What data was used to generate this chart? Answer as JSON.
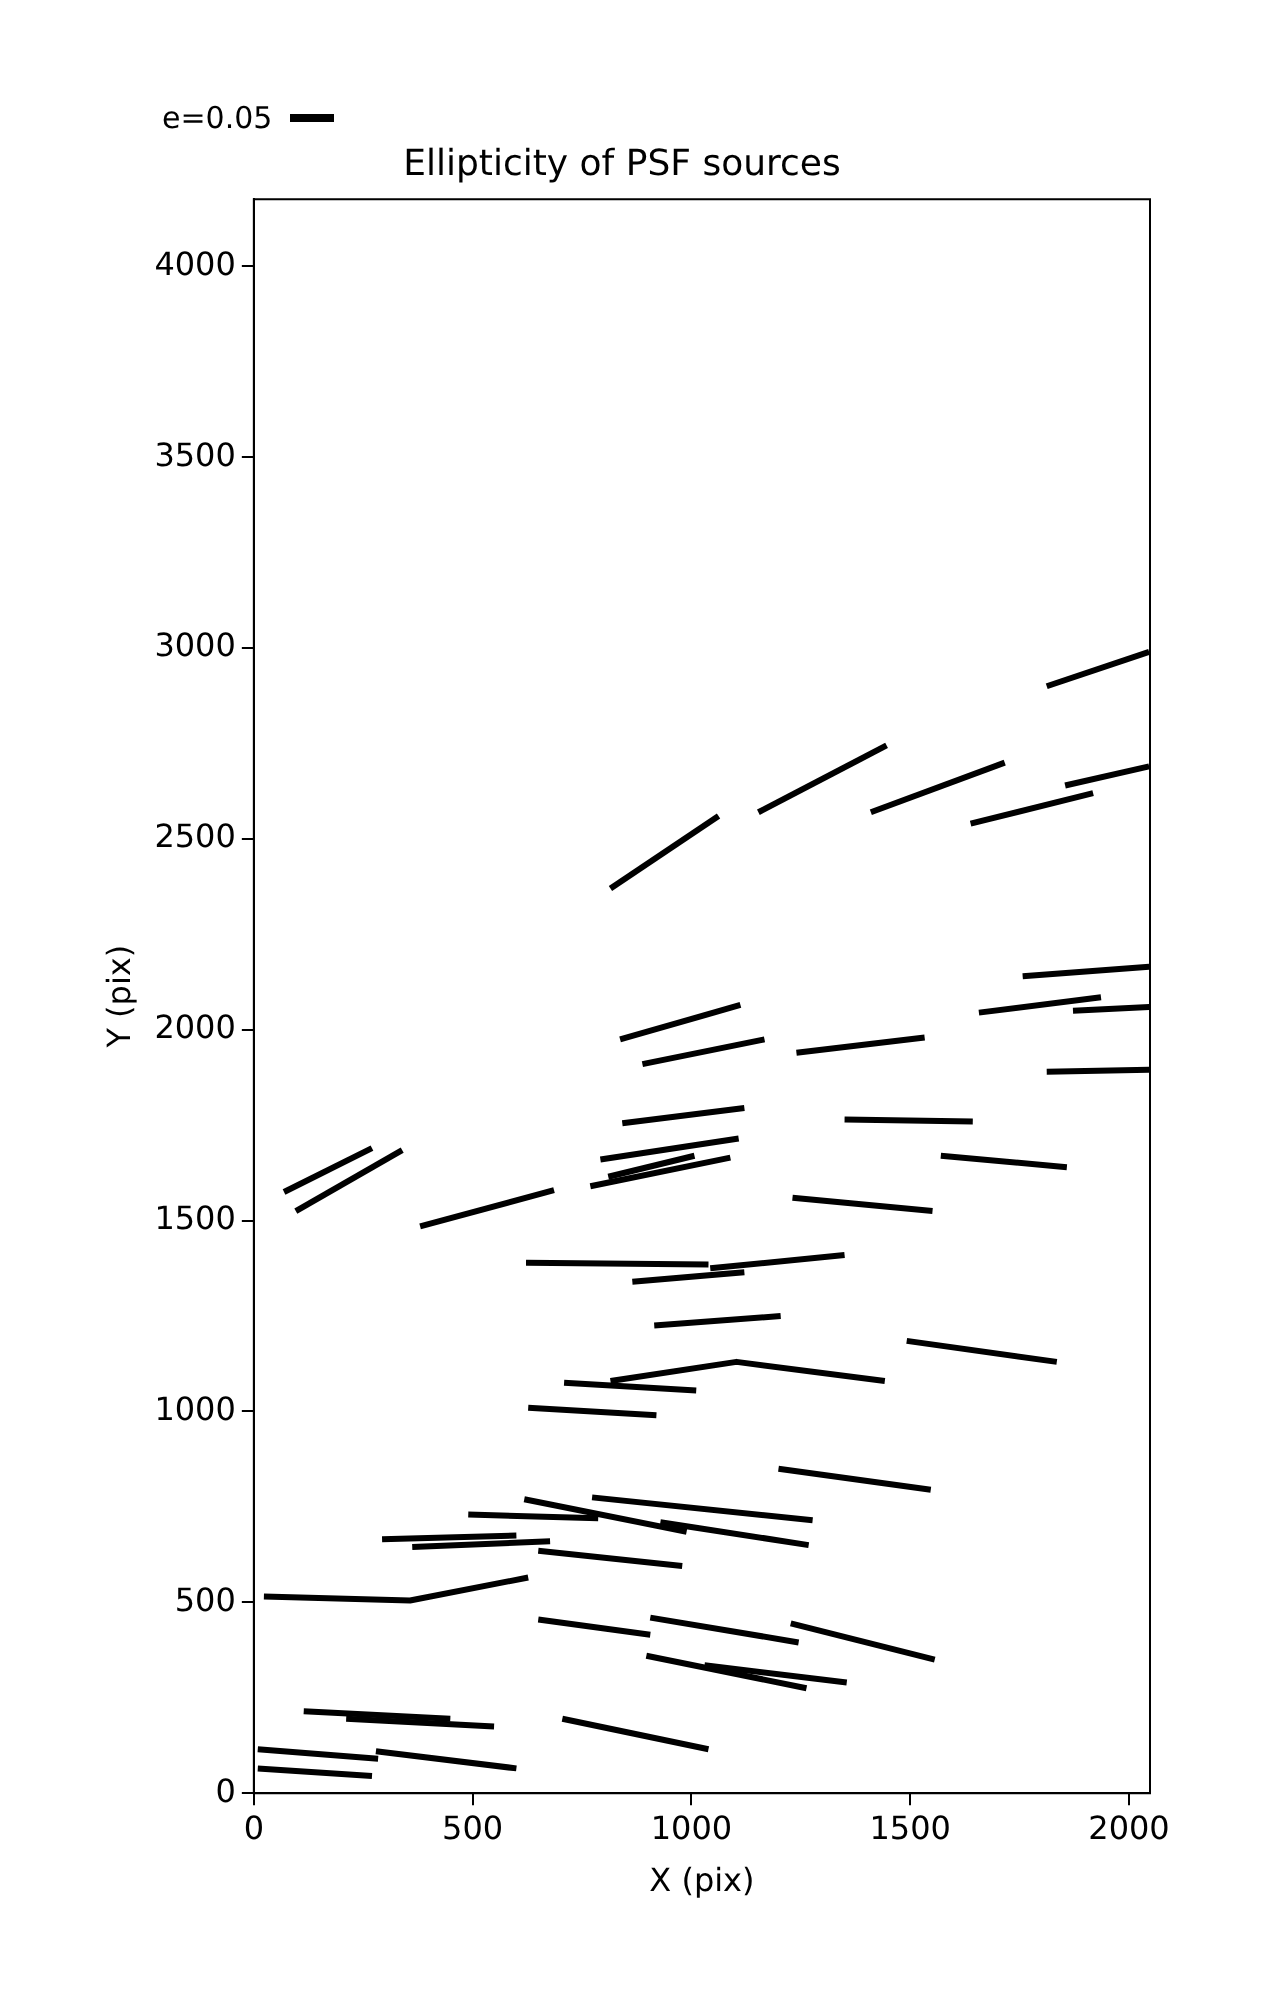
{
  "chart_data": {
    "type": "line",
    "title": "Ellipticity of PSF sources",
    "xlabel": "X (pix)",
    "ylabel": "Y (pix)",
    "xlim": [
      0,
      2048
    ],
    "ylim": [
      0,
      4176
    ],
    "xticks": [
      0,
      500,
      1000,
      1500,
      2000
    ],
    "yticks": [
      0,
      500,
      1000,
      1500,
      2000,
      2500,
      3000,
      3500,
      4000
    ],
    "grid": false,
    "marker": "none",
    "line_style": "solid",
    "annotations": [
      "e=0.05"
    ],
    "series": [
      {
        "color": "#000000",
        "x": [
          1812,
          2046
        ],
        "values": [
          2900,
          2990
        ]
      },
      {
        "color": "#000000",
        "x": [
          815,
          1062
        ],
        "values": [
          2370,
          2560
        ]
      },
      {
        "color": "#000000",
        "x": [
          1153,
          1446
        ],
        "values": [
          2570,
          2745
        ]
      },
      {
        "color": "#000000",
        "x": [
          1410,
          1716
        ],
        "values": [
          2570,
          2700
        ]
      },
      {
        "color": "#000000",
        "x": [
          1638,
          1918
        ],
        "values": [
          2540,
          2620
        ]
      },
      {
        "color": "#000000",
        "x": [
          1854,
          2046
        ],
        "values": [
          2640,
          2690
        ]
      },
      {
        "color": "#000000",
        "x": [
          1757,
          2046
        ],
        "values": [
          2140,
          2165
        ]
      },
      {
        "color": "#000000",
        "x": [
          1657,
          1936
        ],
        "values": [
          2045,
          2085
        ]
      },
      {
        "color": "#000000",
        "x": [
          1872,
          2046
        ],
        "values": [
          2050,
          2060
        ]
      },
      {
        "color": "#000000",
        "x": [
          837,
          1112
        ],
        "values": [
          1975,
          2065
        ]
      },
      {
        "color": "#000000",
        "x": [
          888,
          1167
        ],
        "values": [
          1910,
          1975
        ]
      },
      {
        "color": "#000000",
        "x": [
          1240,
          1533
        ],
        "values": [
          1940,
          1980
        ]
      },
      {
        "color": "#000000",
        "x": [
          1812,
          2046
        ],
        "values": [
          1890,
          1895
        ]
      },
      {
        "color": "#000000",
        "x": [
          842,
          1121
        ],
        "values": [
          1755,
          1795
        ]
      },
      {
        "color": "#000000",
        "x": [
          1350,
          1643
        ],
        "values": [
          1765,
          1760
        ]
      },
      {
        "color": "#000000",
        "x": [
          792,
          1108
        ],
        "values": [
          1660,
          1715
        ]
      },
      {
        "color": "#000000",
        "x": [
          810,
          1007
        ],
        "values": [
          1615,
          1670
        ]
      },
      {
        "color": "#000000",
        "x": [
          769,
          1089
        ],
        "values": [
          1590,
          1665
        ]
      },
      {
        "color": "#000000",
        "x": [
          1570,
          1858
        ],
        "values": [
          1670,
          1640
        ]
      },
      {
        "color": "#000000",
        "x": [
          69,
          270
        ],
        "values": [
          1575,
          1690
        ]
      },
      {
        "color": "#000000",
        "x": [
          96,
          339
        ],
        "values": [
          1525,
          1685
        ]
      },
      {
        "color": "#000000",
        "x": [
          380,
          686
        ],
        "values": [
          1485,
          1580
        ]
      },
      {
        "color": "#000000",
        "x": [
          1231,
          1551
        ],
        "values": [
          1560,
          1525
        ]
      },
      {
        "color": "#000000",
        "x": [
          622,
          1039
        ],
        "values": [
          1390,
          1385
        ]
      },
      {
        "color": "#000000",
        "x": [
          1043,
          1350
        ],
        "values": [
          1375,
          1410
        ]
      },
      {
        "color": "#000000",
        "x": [
          865,
          1121
        ],
        "values": [
          1340,
          1365
        ]
      },
      {
        "color": "#000000",
        "x": [
          915,
          1204
        ],
        "values": [
          1225,
          1250
        ]
      },
      {
        "color": "#000000",
        "x": [
          1492,
          1835
        ],
        "values": [
          1185,
          1130
        ]
      },
      {
        "color": "#000000",
        "x": [
          709,
          1011
        ],
        "values": [
          1075,
          1055
        ]
      },
      {
        "color": "#000000",
        "x": [
          815,
          1103,
          1442
        ],
        "values": [
          1080,
          1130,
          1080
        ]
      },
      {
        "color": "#000000",
        "x": [
          627,
          920
        ],
        "values": [
          1010,
          990
        ]
      },
      {
        "color": "#000000",
        "x": [
          1199,
          1547
        ],
        "values": [
          850,
          795
        ]
      },
      {
        "color": "#000000",
        "x": [
          490,
          787
        ],
        "values": [
          730,
          720
        ]
      },
      {
        "color": "#000000",
        "x": [
          618,
          989
        ],
        "values": [
          770,
          685
        ]
      },
      {
        "color": "#000000",
        "x": [
          773,
          1277
        ],
        "values": [
          775,
          715
        ]
      },
      {
        "color": "#000000",
        "x": [
          929,
          1268
        ],
        "values": [
          710,
          650
        ]
      },
      {
        "color": "#000000",
        "x": [
          293,
          600
        ],
        "values": [
          665,
          675
        ]
      },
      {
        "color": "#000000",
        "x": [
          362,
          677
        ],
        "values": [
          645,
          660
        ]
      },
      {
        "color": "#000000",
        "x": [
          650,
          979
        ],
        "values": [
          635,
          595
        ]
      },
      {
        "color": "#000000",
        "x": [
          23,
          357,
          627
        ],
        "values": [
          515,
          505,
          565
        ]
      },
      {
        "color": "#000000",
        "x": [
          650,
          906
        ],
        "values": [
          455,
          415
        ]
      },
      {
        "color": "#000000",
        "x": [
          906,
          1245
        ],
        "values": [
          460,
          395
        ]
      },
      {
        "color": "#000000",
        "x": [
          1227,
          1556
        ],
        "values": [
          445,
          350
        ]
      },
      {
        "color": "#000000",
        "x": [
          897,
          1263
        ],
        "values": [
          360,
          275
        ]
      },
      {
        "color": "#000000",
        "x": [
          1030,
          1355
        ],
        "values": [
          335,
          290
        ]
      },
      {
        "color": "#000000",
        "x": [
          114,
          449
        ],
        "values": [
          215,
          195
        ]
      },
      {
        "color": "#000000",
        "x": [
          211,
          549
        ],
        "values": [
          195,
          175
        ]
      },
      {
        "color": "#000000",
        "x": [
          705,
          1039
        ],
        "values": [
          195,
          115
        ]
      },
      {
        "color": "#000000",
        "x": [
          9,
          284
        ],
        "values": [
          115,
          90
        ]
      },
      {
        "color": "#000000",
        "x": [
          279,
          600
        ],
        "values": [
          110,
          65
        ]
      },
      {
        "color": "#000000",
        "x": [
          9,
          270
        ],
        "values": [
          65,
          45
        ]
      }
    ]
  }
}
